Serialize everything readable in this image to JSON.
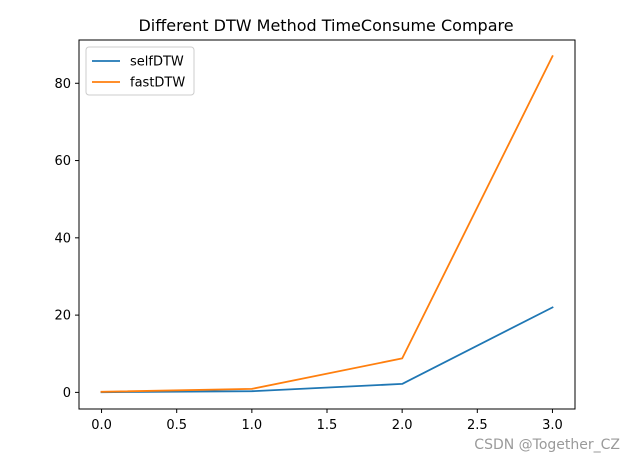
{
  "chart_data": {
    "type": "line",
    "title": "Different DTW Method TimeConsume Compare",
    "xlabel": "",
    "ylabel": "",
    "x": [
      0,
      1,
      2,
      3
    ],
    "xlim": [
      -0.15,
      3.15
    ],
    "ylim": [
      -4.3,
      91.2
    ],
    "xticks": [
      0.0,
      0.5,
      1.0,
      1.5,
      2.0,
      2.5,
      3.0
    ],
    "xtick_labels": [
      "0.0",
      "0.5",
      "1.0",
      "1.5",
      "2.0",
      "2.5",
      "3.0"
    ],
    "yticks": [
      0,
      20,
      40,
      60,
      80
    ],
    "ytick_labels": [
      "0",
      "20",
      "40",
      "60",
      "80"
    ],
    "grid": false,
    "legend_position": "upper-left",
    "series": [
      {
        "name": "selfDTW",
        "values": [
          0.05,
          0.3,
          2.2,
          22.0
        ],
        "color": "#1f77b4"
      },
      {
        "name": "fastDTW",
        "values": [
          0.15,
          0.9,
          8.8,
          87.0
        ],
        "color": "#ff7f0e"
      }
    ]
  },
  "watermark": "CSDN @Together_CZ"
}
